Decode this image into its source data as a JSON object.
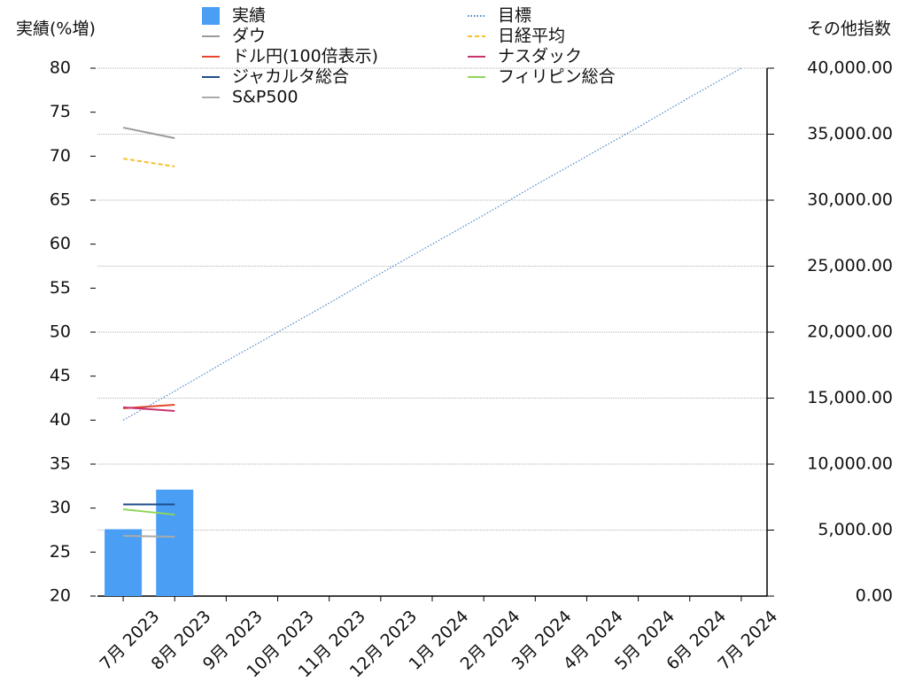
{
  "chart_data": {
    "type": "bar-line",
    "ylabel": "実績(%増)",
    "y2label": "その他指数",
    "categories": [
      "7月 2023",
      "8月 2023",
      "9月 2023",
      "10月 2023",
      "11月 2023",
      "12月 2023",
      "1月 2024",
      "2月 2024",
      "3月 2024",
      "4月 2024",
      "5月 2024",
      "6月 2024",
      "7月 2024"
    ],
    "ylim": [
      20,
      80
    ],
    "yticks": [
      20,
      25,
      30,
      35,
      40,
      45,
      50,
      55,
      60,
      65,
      70,
      75,
      80
    ],
    "y2lim": [
      0,
      40000
    ],
    "y2ticks": [
      {
        "value": 0,
        "label": "0.00"
      },
      {
        "value": 5000,
        "label": "5,000.00"
      },
      {
        "value": 10000,
        "label": "10,000.00"
      },
      {
        "value": 15000,
        "label": "15,000.00"
      },
      {
        "value": 20000,
        "label": "20,000.00"
      },
      {
        "value": 25000,
        "label": "25,000.00"
      },
      {
        "value": 30000,
        "label": "30,000.00"
      },
      {
        "value": 35000,
        "label": "35,000.00"
      },
      {
        "value": 40000,
        "label": "40,000.00"
      }
    ],
    "grid": true,
    "series": [
      {
        "name": "実績",
        "kind": "bar",
        "color": "#4a9ff5",
        "values": [
          27.6,
          32.1,
          null,
          null,
          null,
          null,
          null,
          null,
          null,
          null,
          null,
          null,
          null
        ]
      },
      {
        "name": "ダウ",
        "kind": "line",
        "axis": "y2",
        "color": "#9b9b9b",
        "values": [
          35500,
          34700,
          null,
          null,
          null,
          null,
          null,
          null,
          null,
          null,
          null,
          null,
          null
        ]
      },
      {
        "name": "ドル円(100倍表示)",
        "kind": "line",
        "axis": "y2",
        "color": "#e8462c",
        "values": [
          14230,
          14500,
          null,
          null,
          null,
          null,
          null,
          null,
          null,
          null,
          null,
          null,
          null
        ]
      },
      {
        "name": "ジャカルタ総合",
        "kind": "line",
        "axis": "y2",
        "color": "#1f4e89",
        "values": [
          6950,
          6950,
          null,
          null,
          null,
          null,
          null,
          null,
          null,
          null,
          null,
          null,
          null
        ]
      },
      {
        "name": "S&P500",
        "kind": "line",
        "axis": "y2",
        "color": "#aaaaaa",
        "values": [
          4560,
          4500,
          null,
          null,
          null,
          null,
          null,
          null,
          null,
          null,
          null,
          null,
          null
        ]
      },
      {
        "name": "目標",
        "kind": "line",
        "dash": "dotted",
        "color": "#4a86c8",
        "values": [
          40,
          43.3,
          46.7,
          50,
          53.3,
          56.7,
          60,
          63.3,
          66.7,
          70,
          73.3,
          76.7,
          80
        ]
      },
      {
        "name": "日経平均",
        "kind": "line",
        "axis": "y2",
        "dash": "dashed",
        "color": "#f5c02c",
        "values": [
          33150,
          32550,
          null,
          null,
          null,
          null,
          null,
          null,
          null,
          null,
          null,
          null,
          null
        ]
      },
      {
        "name": "ナスダック",
        "kind": "line",
        "axis": "y2",
        "color": "#c8336e",
        "values": [
          14300,
          14030,
          null,
          null,
          null,
          null,
          null,
          null,
          null,
          null,
          null,
          null,
          null
        ]
      },
      {
        "name": "フィリピン総合",
        "kind": "line",
        "axis": "y2",
        "color": "#8fd65a",
        "values": [
          6580,
          6170,
          null,
          null,
          null,
          null,
          null,
          null,
          null,
          null,
          null,
          null,
          null
        ]
      }
    ]
  }
}
